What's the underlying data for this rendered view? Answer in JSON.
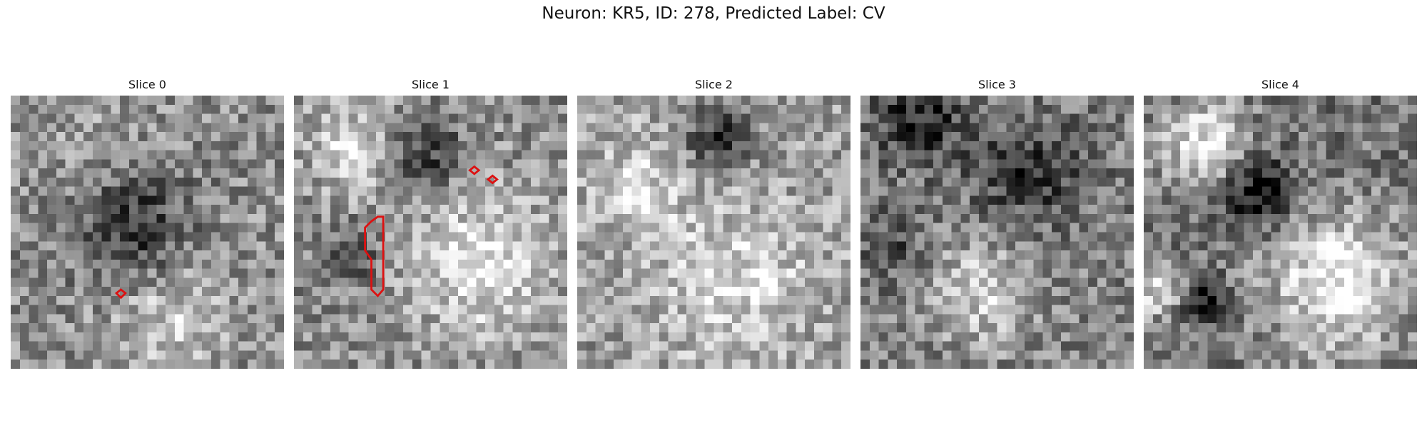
{
  "figure": {
    "title": "Neuron: KR5, ID: 278, Predicted Label: CV"
  },
  "slices": [
    {
      "title": "Slice 0"
    },
    {
      "title": "Slice 1"
    },
    {
      "title": "Slice 2"
    },
    {
      "title": "Slice 3"
    },
    {
      "title": "Slice 4"
    }
  ],
  "colormap": "gray",
  "contour_color": "#dd1111"
}
